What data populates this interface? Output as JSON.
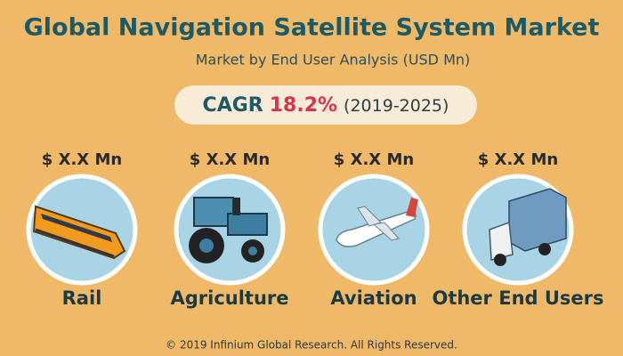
{
  "header": {
    "title": "Global Navigation Satellite System Market",
    "subtitle": "Market by End User Analysis (USD Mn)"
  },
  "cagr": {
    "label": "CAGR",
    "value": "18.2%",
    "period": "(2019-2025)"
  },
  "segments": [
    {
      "value": "$ X.X Mn",
      "label": "Rail"
    },
    {
      "value": "$ X.X Mn",
      "label": "Agriculture"
    },
    {
      "value": "$ X.X Mn",
      "label": "Aviation"
    },
    {
      "value": "$ X.X Mn",
      "label": "Other End Users"
    }
  ],
  "footer": "© 2019 Infinium Global Research. All Rights Reserved."
}
